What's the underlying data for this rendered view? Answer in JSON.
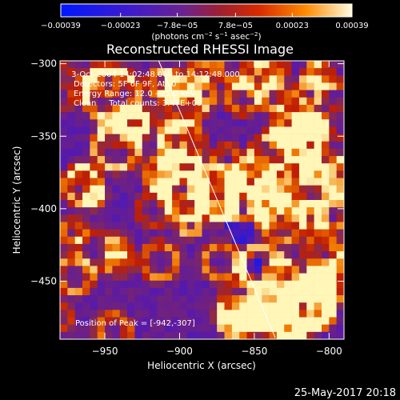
{
  "chart_data": {
    "type": "heatmap",
    "title": "Reconstructed RHESSI Image",
    "xlabel": "Heliocentric X (arcsec)",
    "ylabel": "Heliocentric Y (arcsec)",
    "xlim": [
      -980,
      -790
    ],
    "ylim": [
      -490,
      -298
    ],
    "x_ticks": [
      -950,
      -900,
      -850,
      -800
    ],
    "y_ticks": [
      -300,
      -350,
      -400,
      -450
    ],
    "x_tick_labels": [
      "−950",
      "−900",
      "−850",
      "−800"
    ],
    "y_tick_labels": [
      "−300",
      "−350",
      "−400",
      "−450"
    ],
    "colorbar": {
      "range": [
        -0.00039,
        0.00039
      ],
      "ticks": [
        -0.00039,
        -0.00023,
        -7.8e-05,
        7.8e-05,
        0.00023,
        0.00039
      ],
      "tick_labels": [
        "−0.00039",
        "−0.00023",
        "−7.8e−05",
        "7.8e−05",
        "0.00023",
        "0.00039"
      ],
      "unit_parts": [
        "(photons cm",
        "−2",
        " s",
        "−1",
        " asec",
        "−2",
        ")"
      ],
      "colors": [
        "#0018ff",
        "#5a1aa8",
        "#8a2a4e",
        "#c21e00",
        "#f27c00",
        "#fff6b8"
      ]
    },
    "annotations": [
      " 3-Oct-2004 14:02:48.000 to 14:12:48.000",
      "Detectors: 5F 6F 9F, Att 0",
      "Energy Range: 12.0 - 25.0 keV",
      "Clean     Total counts: 3.47E+03"
    ],
    "peak_label": "Position of Peak = [-942,-307]",
    "limb_line": [
      [
        -914,
        -298
      ],
      [
        -836,
        -489
      ]
    ],
    "grid_cols": 38,
    "grid_rows": 38,
    "seed": 7
  },
  "footer": {
    "date": "25-May-2017 20:18"
  }
}
